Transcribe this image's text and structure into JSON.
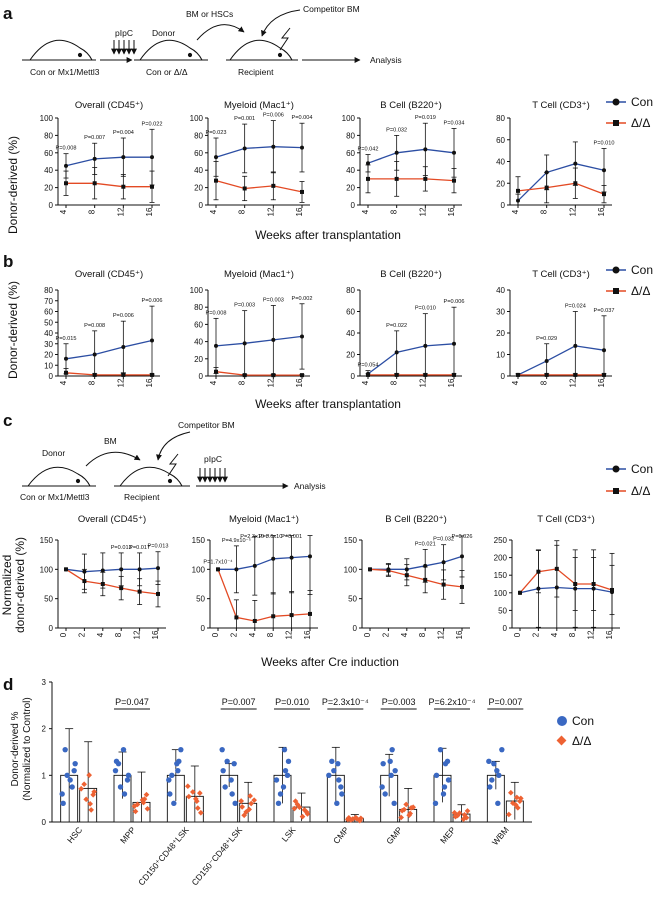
{
  "colors": {
    "con": "#2c4ea3",
    "dd": "#e34a24",
    "con_dot": "#3a68c2",
    "dd_dot": "#ee6233",
    "axis": "#111111"
  },
  "legend": {
    "con": "Con",
    "dd": "Δ/Δ"
  },
  "panel_labels": {
    "a": "a",
    "b": "b",
    "c": "c",
    "d": "d"
  },
  "schematic_a": {
    "donor_start": "Con or Mx1/Mettl3",
    "pipc": "pIpC",
    "donor": "Donor",
    "donor_geno": "Con or Δ/Δ",
    "bm_hsc": "BM or HSCs",
    "competitor": "Competitor BM",
    "recipient": "Recipient",
    "analysis": "Analysis"
  },
  "schematic_c": {
    "donor": "Donor",
    "donor_geno": "Con or Mx1/Mettl3",
    "bm": "BM",
    "competitor": "Competitor BM",
    "recipient": "Recipient",
    "pipc": "pIpC",
    "analysis": "Analysis"
  },
  "axes": {
    "ylabel_ab": "Donor-derived (%)",
    "ylabel_c_1": "Normalized",
    "ylabel_c_2": "donor-derived (%)",
    "xlabel_ab": "Weeks after transplantation",
    "xlabel_c": "Weeks after Cre induction",
    "ylabel_d_1": "Donor-derived %",
    "ylabel_d_2": "(Normalized to Control)"
  },
  "chart_data": [
    {
      "panel": "a",
      "type": "line",
      "title": "Overall (CD45⁺)",
      "x": [
        4,
        8,
        12,
        16
      ],
      "ylim": [
        0,
        100
      ],
      "yticks": [
        0,
        20,
        40,
        60,
        80,
        100
      ],
      "series": [
        {
          "name": "Con",
          "values": [
            45,
            53,
            55,
            55
          ],
          "err": [
            14,
            18,
            22,
            32
          ]
        },
        {
          "name": "Δ/Δ",
          "values": [
            25,
            25,
            21,
            21
          ],
          "err": [
            14,
            18,
            14,
            18
          ]
        }
      ],
      "pvalues": [
        "P=0.008",
        "P=0.007",
        "P=0.004",
        "P=0.022"
      ]
    },
    {
      "panel": "a",
      "type": "line",
      "title": "Myeloid (Mac1⁺)",
      "x": [
        4,
        8,
        12,
        16
      ],
      "ylim": [
        0,
        100
      ],
      "yticks": [
        0,
        20,
        40,
        60,
        80,
        100
      ],
      "series": [
        {
          "name": "Con",
          "values": [
            55,
            65,
            67,
            66
          ],
          "err": [
            22,
            28,
            30,
            28
          ]
        },
        {
          "name": "Δ/Δ",
          "values": [
            28,
            19,
            22,
            15
          ],
          "err": [
            22,
            14,
            16,
            12
          ]
        }
      ],
      "pvalues": [
        "P=0.023",
        "P=0.001",
        "P=0.006",
        "P=0.004"
      ]
    },
    {
      "panel": "a",
      "type": "line",
      "title": "B Cell (B220⁺)",
      "x": [
        4,
        8,
        12,
        16
      ],
      "ylim": [
        0,
        100
      ],
      "yticks": [
        0,
        20,
        40,
        60,
        80,
        100
      ],
      "series": [
        {
          "name": "Con",
          "values": [
            48,
            60,
            64,
            60
          ],
          "err": [
            10,
            20,
            30,
            28
          ]
        },
        {
          "name": "Δ/Δ",
          "values": [
            30,
            30,
            30,
            28
          ],
          "err": [
            16,
            20,
            14,
            14
          ]
        }
      ],
      "pvalues": [
        "P=0.042",
        "P=0.032",
        "P=0.019",
        "P=0.034"
      ]
    },
    {
      "panel": "a",
      "type": "line",
      "title": "T Cell (CD3⁺)",
      "x": [
        4,
        8,
        12,
        16
      ],
      "ylim": [
        0,
        80
      ],
      "yticks": [
        0,
        20,
        40,
        60,
        80
      ],
      "series": [
        {
          "name": "Con",
          "values": [
            4,
            30,
            38,
            32
          ],
          "err": [
            6,
            16,
            20,
            20
          ]
        },
        {
          "name": "Δ/Δ",
          "values": [
            13,
            16,
            20,
            10
          ],
          "err": [
            13,
            14,
            14,
            8
          ]
        }
      ],
      "pvalues": [
        "",
        "",
        "",
        "P=0.010"
      ]
    },
    {
      "panel": "b",
      "type": "line",
      "title": "Overall (CD45⁺)",
      "x": [
        4,
        8,
        12,
        16
      ],
      "ylim": [
        0,
        80
      ],
      "yticks": [
        0,
        10,
        20,
        30,
        40,
        50,
        60,
        70,
        80
      ],
      "series": [
        {
          "name": "Con",
          "values": [
            16,
            20,
            27,
            33
          ],
          "err": [
            14,
            22,
            24,
            32
          ]
        },
        {
          "name": "Δ/Δ",
          "values": [
            3,
            1,
            1,
            1
          ],
          "err": [
            4,
            1,
            1,
            1
          ]
        }
      ],
      "pvalues": [
        "P=0.015",
        "P=0.008",
        "P=0.006",
        "P=0.006"
      ]
    },
    {
      "panel": "b",
      "type": "line",
      "title": "Myeloid (Mac1⁺)",
      "x": [
        4,
        8,
        12,
        16
      ],
      "ylim": [
        0,
        100
      ],
      "yticks": [
        0,
        20,
        40,
        60,
        80,
        100
      ],
      "series": [
        {
          "name": "Con",
          "values": [
            35,
            38,
            42,
            46
          ],
          "err": [
            32,
            38,
            40,
            38
          ]
        },
        {
          "name": "Δ/Δ",
          "values": [
            5,
            1,
            1,
            1
          ],
          "err": [
            5,
            1,
            1,
            1
          ]
        }
      ],
      "pvalues": [
        "P=0.008",
        "P=0.003",
        "P=0.003",
        "P=0.002"
      ]
    },
    {
      "panel": "b",
      "type": "line",
      "title": "B Cell (B220⁺)",
      "x": [
        4,
        8,
        12,
        16
      ],
      "ylim": [
        0,
        80
      ],
      "yticks": [
        0,
        20,
        40,
        60,
        80
      ],
      "series": [
        {
          "name": "Con",
          "values": [
            2,
            22,
            28,
            30
          ],
          "err": [
            3,
            20,
            30,
            34
          ]
        },
        {
          "name": "Δ/Δ",
          "values": [
            1,
            1,
            1,
            1
          ],
          "err": [
            1,
            1,
            1,
            1
          ]
        }
      ],
      "pvalues": [
        "P=0.054",
        "P=0.022",
        "P=0.010",
        "P=0.006"
      ]
    },
    {
      "panel": "b",
      "type": "line",
      "title": "T Cell (CD3⁺)",
      "x": [
        4,
        8,
        12,
        16
      ],
      "ylim": [
        0,
        40
      ],
      "yticks": [
        0,
        10,
        20,
        30,
        40
      ],
      "series": [
        {
          "name": "Con",
          "values": [
            0.5,
            7,
            14,
            12
          ],
          "err": [
            0.5,
            8,
            16,
            16
          ]
        },
        {
          "name": "Δ/Δ",
          "values": [
            0.5,
            0.5,
            0.5,
            0.5
          ],
          "err": [
            0.5,
            0.5,
            0.5,
            0.5
          ]
        }
      ],
      "pvalues": [
        "",
        "P=0.029",
        "P=0.024",
        "P=0.037"
      ]
    },
    {
      "panel": "c",
      "type": "line",
      "title": "Overall (CD45⁺)",
      "x": [
        0,
        2,
        4,
        8,
        12,
        16
      ],
      "ylim": [
        0,
        150
      ],
      "yticks": [
        0,
        50,
        100,
        150
      ],
      "series": [
        {
          "name": "Con",
          "values": [
            100,
            96,
            98,
            100,
            100,
            102
          ],
          "err": [
            0,
            30,
            30,
            28,
            28,
            28
          ]
        },
        {
          "name": "Δ/Δ",
          "values": [
            100,
            80,
            75,
            68,
            62,
            58
          ],
          "err": [
            0,
            20,
            20,
            20,
            22,
            22
          ]
        }
      ],
      "pvalues": [
        "",
        "",
        "",
        "P=0.013",
        "P=0.017",
        "P=0.013"
      ]
    },
    {
      "panel": "c",
      "type": "line",
      "title": "Myeloid (Mac1⁺)",
      "x": [
        0,
        2,
        4,
        8,
        12,
        16
      ],
      "ylim": [
        0,
        150
      ],
      "yticks": [
        0,
        50,
        100,
        150
      ],
      "series": [
        {
          "name": "Con",
          "values": [
            100,
            100,
            106,
            118,
            120,
            122
          ],
          "err": [
            0,
            40,
            50,
            60,
            60,
            65
          ]
        },
        {
          "name": "Δ/Δ",
          "values": [
            100,
            18,
            12,
            20,
            22,
            24
          ],
          "err": [
            0,
            30,
            35,
            40,
            40,
            40
          ]
        }
      ],
      "pvalues": [
        "P=1.7x10⁻⁴",
        "P=4.9x10⁻⁵",
        "P=2.3x10⁻⁴",
        "P=8.6x10⁻⁴",
        "P=0.001",
        ""
      ]
    },
    {
      "panel": "c",
      "type": "line",
      "title": "B Cell (B220⁺)",
      "x": [
        0,
        2,
        4,
        8,
        12,
        16
      ],
      "ylim": [
        0,
        150
      ],
      "yticks": [
        0,
        50,
        100,
        150
      ],
      "series": [
        {
          "name": "Con",
          "values": [
            100,
            100,
            100,
            106,
            112,
            122
          ],
          "err": [
            0,
            10,
            18,
            28,
            30,
            35
          ]
        },
        {
          "name": "Δ/Δ",
          "values": [
            100,
            98,
            90,
            82,
            74,
            70
          ],
          "err": [
            0,
            10,
            18,
            22,
            25,
            28
          ]
        }
      ],
      "pvalues": [
        "",
        "",
        "",
        "P=0.021",
        "P=0.032",
        "P=0.026"
      ]
    },
    {
      "panel": "c",
      "type": "line",
      "title": "T Cell (CD3⁺)",
      "x": [
        0,
        2,
        4,
        8,
        12,
        16
      ],
      "ylim": [
        0,
        250
      ],
      "yticks": [
        0,
        50,
        100,
        150,
        200,
        250
      ],
      "series": [
        {
          "name": "Con",
          "values": [
            100,
            112,
            115,
            112,
            112,
            102
          ],
          "err": [
            0,
            110,
            120,
            110,
            110,
            110
          ]
        },
        {
          "name": "Δ/Δ",
          "values": [
            100,
            160,
            168,
            125,
            125,
            108
          ],
          "err": [
            0,
            60,
            80,
            75,
            75,
            70
          ]
        }
      ],
      "pvalues": [
        "",
        "",
        "",
        "",
        "",
        ""
      ]
    },
    {
      "panel": "d",
      "type": "bar",
      "categories": [
        "HSC",
        "MPP",
        "CD150⁺CD48⁺LSK",
        "CD150⁻CD48⁺LSK",
        "LSK",
        "CMP",
        "GMP",
        "MEP",
        "WBM"
      ],
      "ylabel": "Donor-derived % (Normalized to Control)",
      "ylim": [
        0,
        3
      ],
      "yticks": [
        0,
        1,
        2,
        3
      ],
      "series": [
        {
          "name": "Con",
          "values": [
            1,
            1,
            1,
            1,
            1,
            1,
            1,
            1,
            1
          ],
          "err": [
            1,
            0.5,
            0.55,
            0.25,
            0.6,
            0.6,
            0.45,
            0.58,
            0.3
          ]
        },
        {
          "name": "Δ/Δ",
          "values": [
            0.72,
            0.42,
            0.55,
            0.4,
            0.32,
            0.08,
            0.27,
            0.17,
            0.45
          ],
          "err": [
            1.0,
            0.65,
            0.65,
            0.45,
            0.3,
            0.08,
            0.45,
            0.2,
            0.4
          ]
        }
      ],
      "pvalues": [
        "",
        "P=0.047",
        "",
        "P=0.007",
        "P=0.010",
        "P=2.3x10⁻⁴",
        "P=0.003",
        "P=6.2x10⁻⁴",
        "P=0.007"
      ]
    }
  ]
}
